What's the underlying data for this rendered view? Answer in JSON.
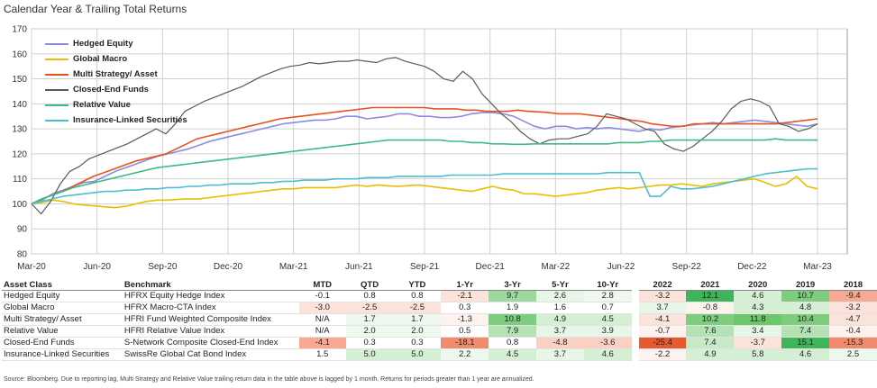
{
  "title": "Calendar Year & Trailing Total Returns",
  "chart_data": {
    "type": "line",
    "x_ticks": [
      "Mar-20",
      "Jun-20",
      "Sep-20",
      "Dec-20",
      "Mar-21",
      "Jun-21",
      "Sep-21",
      "Dec-21",
      "Mar-22",
      "Jun-22",
      "Sep-22",
      "Dec-22",
      "Mar-23"
    ],
    "ylim": [
      80,
      170
    ],
    "y_ticks": [
      80,
      90,
      100,
      110,
      120,
      130,
      140,
      150,
      160,
      170
    ],
    "grid": true,
    "legend_position": "top-left",
    "series": [
      {
        "name": "Hedged Equity",
        "color": "#8a8ce0",
        "values": [
          100,
          101.5,
          104,
          105.5,
          107,
          108.5,
          109,
          111,
          113,
          114.5,
          116,
          117.5,
          119,
          120,
          121,
          122,
          123.5,
          125,
          126,
          127,
          128,
          129,
          130,
          131,
          132,
          132.5,
          133,
          133.5,
          133.5,
          134,
          135,
          135,
          134,
          134.5,
          135,
          136,
          136,
          135,
          135,
          134.5,
          134.5,
          135,
          136,
          136.5,
          136.5,
          136,
          135,
          133,
          131,
          130,
          131,
          131,
          130,
          130.5,
          130,
          130.5,
          130,
          129.5,
          129,
          130,
          129.5,
          130.5,
          131,
          131.5,
          132,
          132.5,
          132,
          132.5,
          133,
          133.5,
          133,
          132.5,
          132,
          131.5,
          131,
          132
        ]
      },
      {
        "name": "Global Macro",
        "color": "#e6c000",
        "values": [
          100,
          100.5,
          101.5,
          101,
          100,
          99.5,
          99.2,
          98.8,
          98.5,
          99,
          100,
          101,
          101.5,
          101.5,
          101.8,
          102,
          102,
          102.5,
          103,
          103.5,
          104,
          104.5,
          105,
          105.5,
          106,
          106,
          106.5,
          106.5,
          106.5,
          106.5,
          107,
          107.5,
          107,
          107.5,
          107.2,
          107,
          107.3,
          107.5,
          107,
          106.5,
          106,
          105.5,
          105,
          106,
          107,
          106,
          105.5,
          104,
          104,
          103.5,
          103,
          103.5,
          104,
          104.5,
          105.5,
          106,
          106.5,
          106,
          106.5,
          107,
          107.5,
          107.5,
          108,
          107.5,
          107,
          108,
          108.5,
          109,
          109.5,
          110,
          108.5,
          107,
          108,
          111,
          107,
          106
        ]
      },
      {
        "name": "Multi Strategy/ Asset",
        "color": "#e8531e",
        "values": [
          100,
          102,
          103.5,
          105,
          107,
          109,
          111,
          112.5,
          114,
          115.5,
          117,
          118,
          119,
          120,
          122,
          124,
          126,
          127,
          128,
          129,
          130,
          131,
          132,
          133,
          134,
          134.5,
          135,
          135.5,
          136,
          136.5,
          137,
          137.5,
          138,
          138.5,
          138.5,
          138.5,
          138.5,
          138.5,
          138.5,
          138,
          138,
          138,
          137.5,
          137.5,
          137,
          137,
          137,
          137.5,
          137,
          136.8,
          136.5,
          136,
          136,
          136,
          135.5,
          135,
          134.5,
          134,
          133.5,
          133,
          132,
          131.5,
          131,
          131,
          132,
          132,
          132,
          132,
          132,
          132,
          132,
          132,
          132,
          132.5,
          133,
          133.5,
          134
        ]
      },
      {
        "name": "Closed-End Funds",
        "color": "#5a5a5a",
        "values": [
          100,
          96,
          101,
          108,
          113,
          115,
          118,
          119.5,
          121,
          122.5,
          124,
          126,
          128,
          130,
          128,
          132,
          137,
          139,
          141,
          142.5,
          144,
          145.5,
          147,
          149,
          151,
          152.5,
          154,
          155,
          155.5,
          156.5,
          156,
          156.5,
          157,
          157,
          157.5,
          157,
          156.5,
          158,
          158.5,
          157,
          156,
          155,
          153,
          150,
          149,
          153,
          150,
          144,
          140,
          136,
          133,
          129,
          126,
          124,
          125.5,
          126,
          126,
          127,
          128,
          131,
          136,
          135,
          134,
          132,
          130,
          129,
          124,
          122,
          121,
          123,
          126,
          129,
          133,
          138,
          141,
          142,
          141,
          139,
          132,
          131,
          129,
          130,
          132
        ]
      },
      {
        "name": "Relative Value",
        "color": "#3cbc84",
        "values": [
          100,
          102,
          103.5,
          105,
          106.5,
          107.5,
          108.5,
          109.5,
          110.5,
          111.5,
          112.5,
          113.5,
          114.5,
          115,
          115.5,
          116,
          116.5,
          117,
          117.5,
          118,
          118.5,
          119,
          119.5,
          120,
          120.5,
          121,
          121.5,
          122,
          122.5,
          123,
          123.5,
          124,
          124.5,
          125,
          125.5,
          125.5,
          125.5,
          125.5,
          125.5,
          125.5,
          125,
          125,
          124.5,
          124.5,
          124,
          124,
          123.8,
          123.8,
          124,
          124,
          124,
          124,
          124,
          124,
          124,
          124,
          124.5,
          124.5,
          124.5,
          125,
          125,
          125.5,
          125.5,
          125.5,
          125.5,
          125.5,
          125.5,
          125.5,
          125.5,
          125.5,
          125.5,
          126,
          125.5,
          125.5,
          125.5,
          125.5
        ]
      },
      {
        "name": "Insurance-Linked Securities",
        "color": "#4bbfd0",
        "values": [
          100,
          101,
          102,
          103,
          103.5,
          104,
          104.5,
          105,
          105,
          105.5,
          105.5,
          106,
          106,
          106.5,
          106.5,
          107,
          107,
          107.5,
          107.5,
          108,
          108,
          108,
          108.5,
          108.5,
          109,
          109,
          109.5,
          109.5,
          109.5,
          110,
          110,
          110,
          110.5,
          110.5,
          110.5,
          111,
          111,
          111,
          111,
          111,
          111.5,
          111.5,
          111.5,
          111.5,
          111.5,
          112,
          112,
          112,
          112,
          112,
          112,
          112,
          112,
          112,
          112,
          112.5,
          112.5,
          112.5,
          112.5,
          103,
          103,
          107,
          106,
          106,
          106.5,
          107,
          108,
          109,
          110,
          111,
          112,
          112.5,
          113,
          113.5,
          114,
          114
        ]
      }
    ]
  },
  "table": {
    "headers": [
      "Asset Class",
      "Benchmark",
      "MTD",
      "QTD",
      "YTD",
      "1-Yr",
      "3-Yr",
      "5-Yr",
      "10-Yr",
      "2022",
      "2021",
      "2020",
      "2019",
      "2018"
    ],
    "rows": [
      {
        "asset": "Hedged Equity",
        "benchmark": "HFRX Equity Hedge Index",
        "values": [
          "-0.1",
          "0.8",
          "0.8",
          "-2.1",
          "9.7",
          "2.6",
          "2.8",
          "-3.2",
          "12.1",
          "4.6",
          "10.7",
          "-9.4"
        ]
      },
      {
        "asset": "Global  Macro",
        "benchmark": "HFRX Macro-CTA Index",
        "values": [
          "-3.0",
          "-2.5",
          "-2.5",
          "0.3",
          "1.9",
          "1.6",
          "0.7",
          "3.7",
          "-0.8",
          "4.3",
          "4.8",
          "-3.2"
        ]
      },
      {
        "asset": "Multi Strategy/ Asset",
        "benchmark": "HFRI Fund Weighted Composite Index",
        "values": [
          "N/A",
          "1.7",
          "1.7",
          "-1.3",
          "10.8",
          "4.9",
          "4.5",
          "-4.1",
          "10.2",
          "11.8",
          "10.4",
          "-4.7"
        ]
      },
      {
        "asset": "Relative Value",
        "benchmark": "HFRI Relative Value Index",
        "values": [
          "N/A",
          "2.0",
          "2.0",
          "0.5",
          "7.9",
          "3.7",
          "3.9",
          "-0.7",
          "7.6",
          "3.4",
          "7.4",
          "-0.4"
        ]
      },
      {
        "asset": "Closed-End Funds",
        "benchmark": "S-Network Composite Closed-End Index",
        "values": [
          "-4.1",
          "0.3",
          "0.3",
          "-18.1",
          "0.8",
          "-4.8",
          "-3.6",
          "-25.4",
          "7.4",
          "-3.7",
          "15.1",
          "-15.3"
        ]
      },
      {
        "asset": "Insurance-Linked Securities",
        "benchmark": "SwissRe Global Cat Bond Index",
        "values": [
          "1.5",
          "5.0",
          "5.0",
          "2.2",
          "4.5",
          "3.7",
          "4.6",
          "-2.2",
          "4.9",
          "5.8",
          "4.6",
          "2.5"
        ]
      }
    ],
    "heat_colors": [
      [
        "#ffffff",
        "#ffffff",
        "#ffffff",
        "#fbe3dc",
        "#9dd89d",
        "#e8f6e8",
        "#eef8ee",
        "#fbe3dc",
        "#3fb55a",
        "#d5efd5",
        "#7ccd7c",
        "#f7a994"
      ],
      [
        "#fbe3dc",
        "#fbe3dc",
        "#fbe3dc",
        "#ffffff",
        "#ffffff",
        "#ffffff",
        "#ffffff",
        "#e8f6e8",
        "#fdf2ee",
        "#d5efd5",
        "#d5efd5",
        "#fbe3dc"
      ],
      [
        "#ffffff",
        "#eef8ee",
        "#eef8ee",
        "#fdf2ee",
        "#7ccd7c",
        "#d5efd5",
        "#d5efd5",
        "#fbe3dc",
        "#7ccd7c",
        "#6cc76c",
        "#7ccd7c",
        "#fbe3dc"
      ],
      [
        "#ffffff",
        "#eef8ee",
        "#eef8ee",
        "#ffffff",
        "#b5e2b5",
        "#e8f6e8",
        "#e8f6e8",
        "#fdf2ee",
        "#b5e2b5",
        "#e8f6e8",
        "#b5e2b5",
        "#fdf2ee"
      ],
      [
        "#f7a994",
        "#ffffff",
        "#ffffff",
        "#f28a6e",
        "#ffffff",
        "#fbd0c3",
        "#fbd0c3",
        "#e8592f",
        "#c6e9c6",
        "#fbe3dc",
        "#3fb55a",
        "#f28a6e"
      ],
      [
        "#ffffff",
        "#d5efd5",
        "#d5efd5",
        "#eef8ee",
        "#d5efd5",
        "#e8f6e8",
        "#d5efd5",
        "#fdf2ee",
        "#d5efd5",
        "#d5efd5",
        "#d5efd5",
        "#eef8ee"
      ]
    ]
  },
  "source": "Source: Bloomberg. Due to reporting lag, Multi Strategy and Relative Value trailing return data in the table above is lagged by 1 month. Returns for periods greater than 1 year are annualized."
}
